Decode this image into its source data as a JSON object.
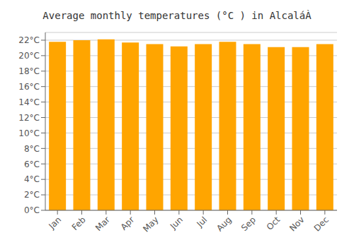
{
  "chart_data": {
    "type": "bar",
    "title": "Average monthly temperatures (°C ) in AlcaláÀ",
    "categories": [
      "Jan",
      "Feb",
      "Mar",
      "Apr",
      "May",
      "Jun",
      "Jul",
      "Aug",
      "Sep",
      "Oct",
      "Nov",
      "Dec"
    ],
    "values": [
      21.8,
      22.0,
      22.1,
      21.7,
      21.5,
      21.2,
      21.5,
      21.8,
      21.5,
      21.1,
      21.1,
      21.5
    ],
    "color": "#FFA500",
    "ylim": [
      0,
      23
    ],
    "yticks": [
      {
        "value": 0,
        "label": "0°C"
      },
      {
        "value": 2,
        "label": "2°C"
      },
      {
        "value": 4,
        "label": "4°C"
      },
      {
        "value": 6,
        "label": "6°C"
      },
      {
        "value": 8,
        "label": "8°C"
      },
      {
        "value": 10,
        "label": "10°C"
      },
      {
        "value": 12,
        "label": "12°C"
      },
      {
        "value": 14,
        "label": "14°C"
      },
      {
        "value": 16,
        "label": "16°C"
      },
      {
        "value": 18,
        "label": "18°C"
      },
      {
        "value": 20,
        "label": "20°C"
      },
      {
        "value": 22,
        "label": "22°C"
      }
    ],
    "grid": true
  }
}
